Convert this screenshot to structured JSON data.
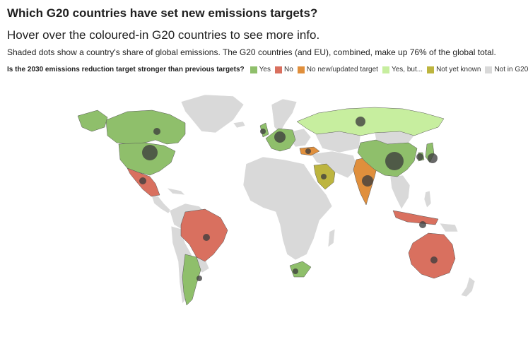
{
  "header": {
    "title": "Which G20 countries have set new emissions targets?",
    "subtitle": "Hover over the coloured-in G20 countries to see more info.",
    "description": "Shaded dots show a country's share of global emissions. The G20 countries (and EU), combined, make up 76% of the global total."
  },
  "legend": {
    "question": "Is the 2030 emissions reduction target stronger than previous targets?",
    "items": [
      {
        "label": "Yes",
        "color": "#8fbf6b"
      },
      {
        "label": "No",
        "color": "#d9705f"
      },
      {
        "label": "No new/updated target",
        "color": "#e08f3c"
      },
      {
        "label": "Yes, but...",
        "color": "#c7ee9f"
      },
      {
        "label": "Not yet known",
        "color": "#bdb53f"
      },
      {
        "label": "Not in G20",
        "color": "#d9d9d9"
      }
    ]
  },
  "map": {
    "colors": {
      "yes": "#8fbf6b",
      "no": "#d9705f",
      "none": "#e08f3c",
      "yesbut": "#c7ee9f",
      "unknown": "#bdb53f",
      "other": "#d9d9d9",
      "dot": "#3e3e3e"
    },
    "g20_status": {
      "USA": "yes",
      "Canada": "yes",
      "Mexico": "no",
      "Brazil": "no",
      "Argentina": "yes",
      "UK": "yes",
      "EU": "yes",
      "Russia": "yesbut",
      "Turkey": "none",
      "Saudi Arabia": "unknown",
      "India": "none",
      "China": "yes",
      "Japan": "yes",
      "South Korea": "yes",
      "Indonesia": "no",
      "Australia": "no",
      "South Africa": "yes"
    }
  }
}
